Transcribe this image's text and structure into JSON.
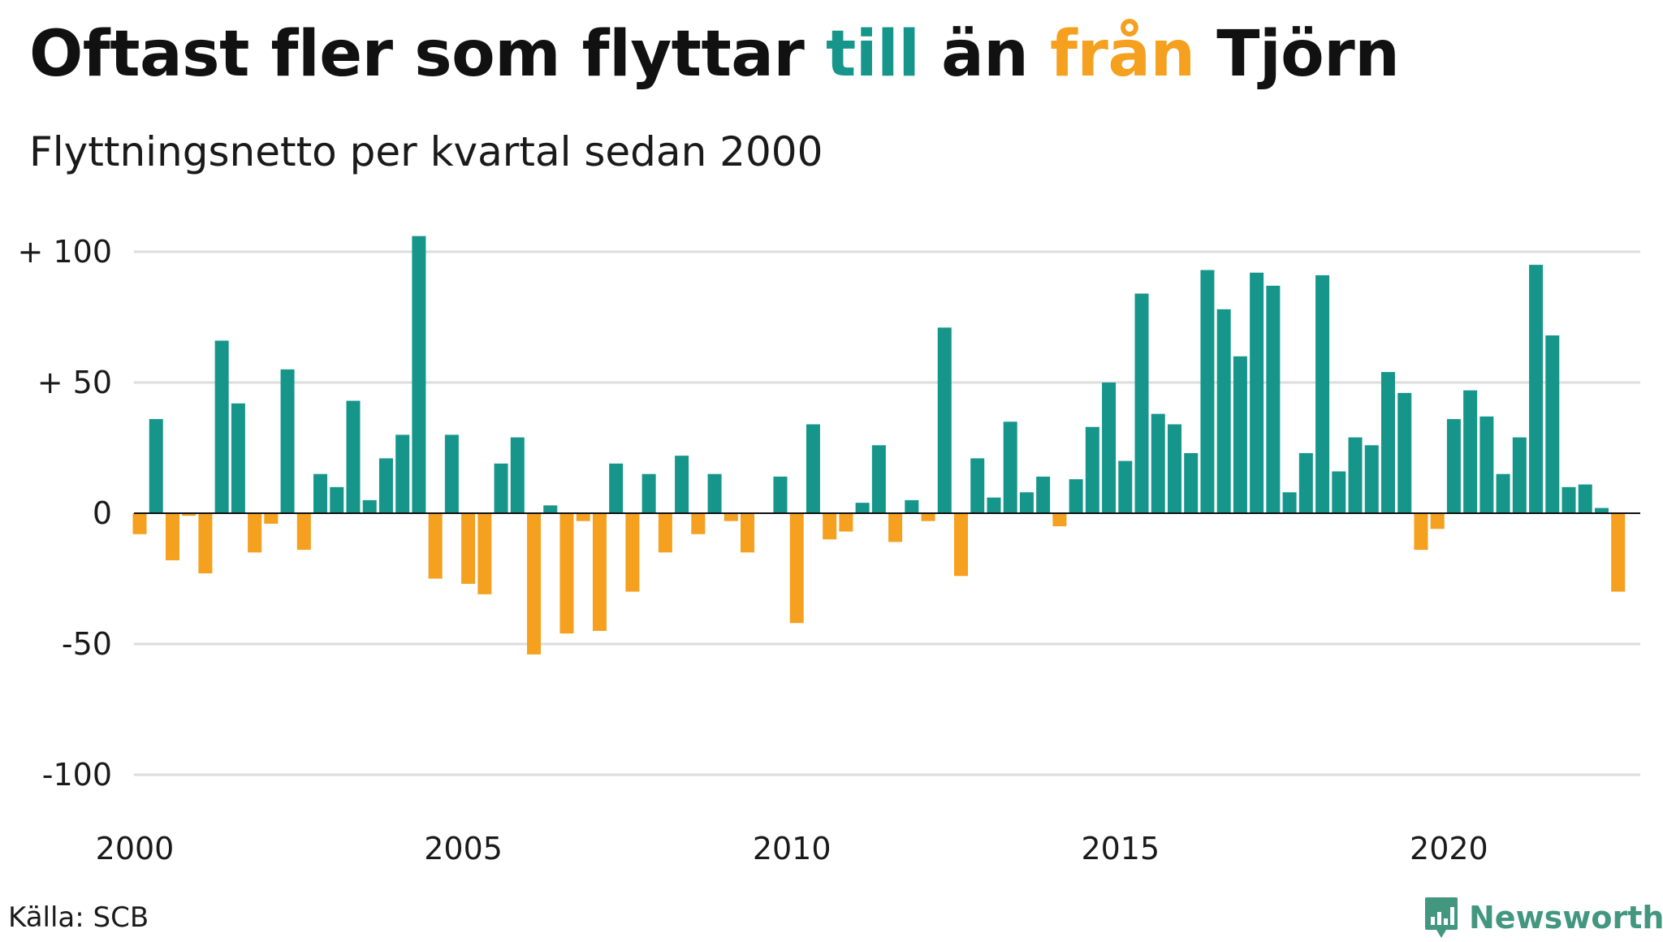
{
  "title": {
    "part1": "Oftast fler som flyttar ",
    "part2": "till",
    "part3": " än ",
    "part4": "från",
    "part5": " Tjörn"
  },
  "subtitle": "Flyttningsnetto per kvartal sedan 2000",
  "source": "Källa: SCB",
  "brand": "Newsworthy",
  "colors": {
    "positive": "#16968a",
    "negative": "#f5a01e",
    "grid": "#dddddd",
    "zero_line": "#111111",
    "brand": "#43977f"
  },
  "chart_data": {
    "type": "bar",
    "x_start": "2000 Q1",
    "ylim": [
      -105,
      108
    ],
    "yticks": [
      {
        "value": 100,
        "label": "+ 100"
      },
      {
        "value": 50,
        "label": "+  50"
      },
      {
        "value": 0,
        "label": "0"
      },
      {
        "value": -50,
        "label": "-50"
      },
      {
        "value": -100,
        "label": "-100"
      }
    ],
    "xticks": [
      "2000",
      "2005",
      "2010",
      "2015",
      "2020"
    ],
    "grid": true,
    "values": [
      -8,
      36,
      -18,
      -1,
      -23,
      66,
      42,
      -15,
      -4,
      55,
      -14,
      15,
      10,
      43,
      5,
      21,
      30,
      106,
      -25,
      30,
      -27,
      -31,
      19,
      29,
      -54,
      3,
      -46,
      -3,
      -45,
      19,
      -30,
      15,
      -15,
      22,
      -8,
      15,
      -3,
      -15,
      0,
      14,
      -42,
      34,
      -10,
      -7,
      4,
      26,
      -11,
      5,
      -3,
      71,
      -24,
      21,
      6,
      35,
      8,
      14,
      -5,
      13,
      33,
      50,
      20,
      84,
      38,
      34,
      23,
      93,
      78,
      60,
      92,
      87,
      8,
      23,
      91,
      16,
      29,
      26,
      54,
      46,
      -14,
      -6,
      36,
      47,
      37,
      15,
      29,
      95,
      68,
      10,
      11,
      2,
      -30
    ]
  }
}
